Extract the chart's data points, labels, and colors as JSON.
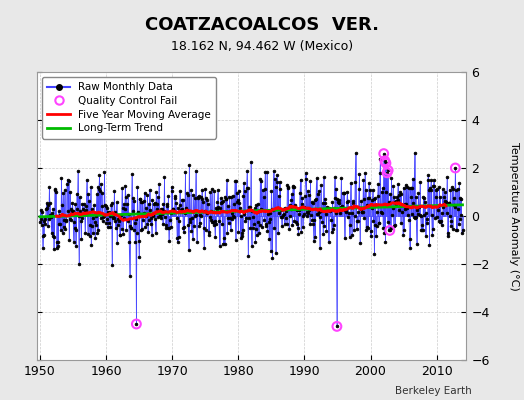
{
  "title": "COATZACOALCOS  VER.",
  "subtitle": "18.162 N, 94.462 W (Mexico)",
  "ylabel": "Temperature Anomaly (°C)",
  "credit": "Berkeley Earth",
  "year_start": 1950,
  "year_end": 2014,
  "ylim": [
    -6,
    6
  ],
  "yticks": [
    -6,
    -4,
    -2,
    0,
    2,
    4,
    6
  ],
  "xticks": [
    1950,
    1960,
    1970,
    1980,
    1990,
    2000,
    2010
  ],
  "raw_color": "#4444FF",
  "marker_color": "#000000",
  "qc_color": "#FF44FF",
  "moving_avg_color": "#FF0000",
  "trend_color": "#00BB00",
  "background_color": "#E8E8E8",
  "plot_bg_color": "#FFFFFF",
  "grid_color": "#CCCCCC"
}
